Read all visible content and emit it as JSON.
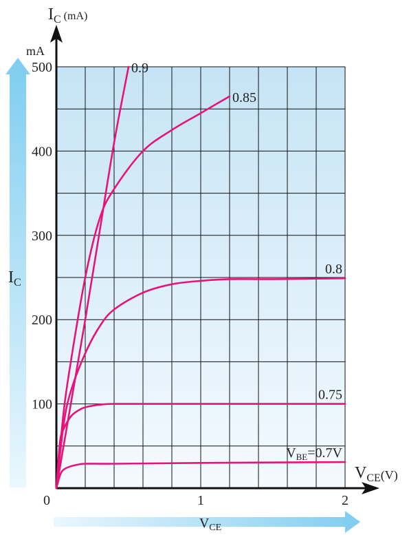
{
  "chart_data": {
    "type": "line",
    "y_axis": {
      "symbol": "I",
      "subscript": "C",
      "suffix": "(mA)",
      "unit_label": "mA",
      "min": 0,
      "max": 500,
      "ticks": [
        0,
        100,
        200,
        300,
        400,
        500
      ],
      "minor_step": 50
    },
    "x_axis": {
      "symbol": "V",
      "subscript": "CE",
      "suffix": "(V)",
      "min": 0,
      "max": 2,
      "ticks": [
        0,
        1,
        2
      ],
      "minor_step": 0.2
    },
    "side_arrow_labels": {
      "left": {
        "symbol": "I",
        "subscript": "C"
      },
      "bottom": {
        "symbol": "V",
        "subscript": "CE"
      }
    },
    "grid": true,
    "series": [
      {
        "name": "0.9",
        "x": [
          0,
          0.1,
          0.2,
          0.3,
          0.4,
          0.5
        ],
        "y": [
          0,
          100,
          200,
          305,
          410,
          500
        ]
      },
      {
        "name": "0.85",
        "x": [
          0,
          0.05,
          0.1,
          0.2,
          0.3,
          0.4,
          0.6,
          0.8,
          1.0,
          1.2
        ],
        "y": [
          0,
          90,
          150,
          250,
          320,
          355,
          400,
          425,
          445,
          465
        ]
      },
      {
        "name": "0.8",
        "x": [
          0,
          0.05,
          0.1,
          0.2,
          0.3,
          0.4,
          0.6,
          0.8,
          1.0,
          1.2,
          1.5,
          2.0
        ],
        "y": [
          0,
          75,
          115,
          160,
          192,
          212,
          232,
          242,
          246,
          248,
          248,
          249
        ]
      },
      {
        "name": "0.75",
        "x": [
          0,
          0.025,
          0.05,
          0.1,
          0.15,
          0.2,
          0.3,
          0.4,
          0.6,
          1.0,
          2.0
        ],
        "y": [
          0,
          55,
          70,
          85,
          92,
          96,
          99,
          100,
          100,
          100,
          100
        ]
      },
      {
        "name": "VBE=0.7V",
        "label_prefix": "V",
        "label_subscript": "BE",
        "label_rest": "=0.7V",
        "x": [
          0,
          0.025,
          0.05,
          0.1,
          0.15,
          0.2,
          0.4,
          1.0,
          2.0
        ],
        "y": [
          0,
          15,
          22,
          26,
          28,
          29,
          29,
          30,
          31
        ]
      }
    ],
    "line_color": "#e6147a",
    "grid_color": "#111111",
    "plot_bg_top": "#c6e4f5",
    "plot_bg_bottom": "#f4faff",
    "arrow_color": "#7fcdf0"
  }
}
